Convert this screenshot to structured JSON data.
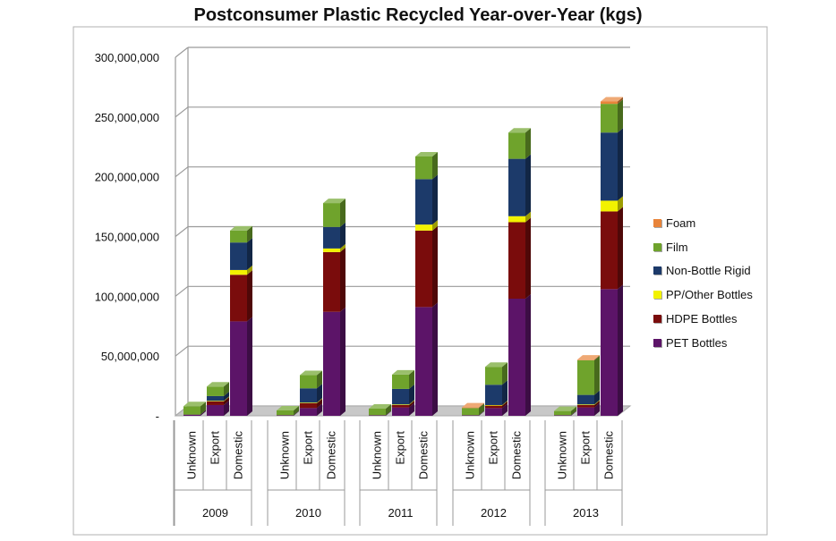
{
  "chart_data": {
    "type": "bar",
    "stacked": true,
    "three_d": true,
    "title": "Postconsumer Plastic Recycled Year-over-Year (kgs)",
    "ylim": [
      0,
      300000000
    ],
    "yticks": [
      0,
      50000000,
      100000000,
      150000000,
      200000000,
      250000000,
      300000000
    ],
    "ytick_labels": [
      "-",
      "50,000,000",
      "100,000,000",
      "150,000,000",
      "200,000,000",
      "250,000,000",
      "300,000,000"
    ],
    "grid": true,
    "legend_position": "right",
    "groups": [
      "2009",
      "2010",
      "2011",
      "2012",
      "2013"
    ],
    "subcategories": [
      "Unknown",
      "Export",
      "Domestic"
    ],
    "series": [
      {
        "name": "PET Bottles",
        "color": "#5c1468",
        "values": [
          [
            1000000,
            9000000,
            79000000
          ],
          [
            500000,
            6500000,
            87000000
          ],
          [
            500000,
            7000000,
            91000000
          ],
          [
            500000,
            6500000,
            98000000
          ],
          [
            500000,
            7000000,
            106000000
          ]
        ]
      },
      {
        "name": "HDPE Bottles",
        "color": "#7a0c0c",
        "values": [
          [
            0,
            3000000,
            39000000
          ],
          [
            0,
            4000000,
            50000000
          ],
          [
            0,
            2000000,
            64000000
          ],
          [
            0,
            2000000,
            64000000
          ],
          [
            0,
            2000000,
            65000000
          ]
        ]
      },
      {
        "name": "PP/Other Bottles",
        "color": "#f2f200",
        "values": [
          [
            0,
            500000,
            4000000
          ],
          [
            0,
            500000,
            3000000
          ],
          [
            0,
            500000,
            5000000
          ],
          [
            0,
            500000,
            5000000
          ],
          [
            0,
            500000,
            9000000
          ]
        ]
      },
      {
        "name": "Non-Bottle Rigid",
        "color": "#1c3a6a",
        "values": [
          [
            0,
            4000000,
            23000000
          ],
          [
            0,
            12000000,
            18000000
          ],
          [
            0,
            13000000,
            38000000
          ],
          [
            0,
            17000000,
            48000000
          ],
          [
            0,
            8000000,
            57000000
          ]
        ]
      },
      {
        "name": "Film",
        "color": "#6fa32c",
        "values": [
          [
            7000000,
            8000000,
            10000000
          ],
          [
            4000000,
            11000000,
            20000000
          ],
          [
            5500000,
            12000000,
            19000000
          ],
          [
            6000000,
            15000000,
            22000000
          ],
          [
            3500000,
            29000000,
            24000000
          ]
        ]
      },
      {
        "name": "Foam",
        "color": "#e8843a",
        "values": [
          [
            0,
            0,
            0
          ],
          [
            0,
            0,
            0
          ],
          [
            0,
            0,
            0
          ],
          [
            500000,
            0,
            0
          ],
          [
            0,
            500000,
            2000000
          ]
        ]
      }
    ]
  }
}
